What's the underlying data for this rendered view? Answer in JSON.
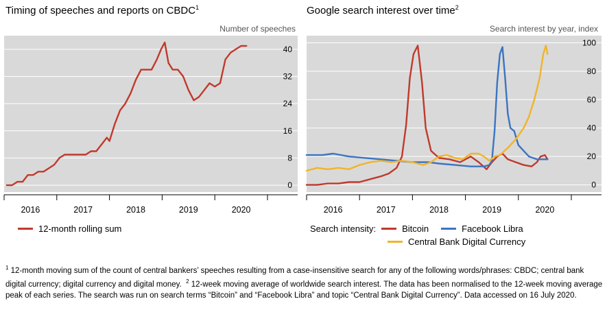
{
  "chart_data": [
    {
      "type": "line",
      "title": "Timing of speeches and reports on CBDC",
      "title_note": "1",
      "unit_label": "Number of speeches",
      "y_ticks": [
        0,
        8,
        16,
        24,
        32,
        40
      ],
      "ylim": [
        -2,
        44
      ],
      "x_labels": [
        "2016",
        "2017",
        "2018",
        "2019",
        "2020"
      ],
      "xlim": [
        2015.5,
        2020.5
      ],
      "grid": true,
      "background": "#d9d9d9",
      "series": [
        {
          "name": "12-month rolling sum",
          "color": "#c0392b",
          "x": [
            2015.55,
            2015.65,
            2015.75,
            2015.85,
            2015.95,
            2016.05,
            2016.15,
            2016.25,
            2016.35,
            2016.45,
            2016.55,
            2016.65,
            2016.75,
            2016.85,
            2016.95,
            2017.05,
            2017.15,
            2017.25,
            2017.35,
            2017.45,
            2017.5,
            2017.6,
            2017.7,
            2017.8,
            2017.9,
            2018.0,
            2018.1,
            2018.2,
            2018.3,
            2018.4,
            2018.48,
            2018.55,
            2018.62,
            2018.7,
            2018.8,
            2018.9,
            2019.0,
            2019.1,
            2019.2,
            2019.3,
            2019.4,
            2019.5,
            2019.6,
            2019.7,
            2019.8,
            2019.9,
            2020.0,
            2020.1
          ],
          "values": [
            0,
            0,
            1,
            1,
            3,
            3,
            4,
            4,
            5,
            6,
            8,
            9,
            9,
            9,
            9,
            9,
            10,
            10,
            12,
            14,
            13,
            18,
            22,
            24,
            27,
            31,
            34,
            34,
            34,
            37,
            40,
            42,
            36,
            34,
            34,
            32,
            28,
            25,
            26,
            28,
            30,
            29,
            30,
            37,
            39,
            40,
            41,
            41
          ]
        }
      ]
    },
    {
      "type": "line",
      "title": "Google search interest over time",
      "title_note": "2",
      "unit_label": "Search interest by year, index",
      "y_ticks": [
        0,
        20,
        40,
        60,
        80,
        100
      ],
      "ylim": [
        -5,
        105
      ],
      "x_labels": [
        "2016",
        "2017",
        "2018",
        "2019",
        "2020"
      ],
      "xlim": [
        2015.5,
        2020.5
      ],
      "grid": true,
      "background": "#d9d9d9",
      "legend_label": "Search intensity:",
      "series": [
        {
          "name": "Bitcoin",
          "color": "#c0392b",
          "x": [
            2015.5,
            2015.7,
            2015.9,
            2016.1,
            2016.3,
            2016.5,
            2016.7,
            2016.9,
            2017.05,
            2017.2,
            2017.3,
            2017.38,
            2017.45,
            2017.52,
            2017.6,
            2017.68,
            2017.75,
            2017.85,
            2018.0,
            2018.2,
            2018.4,
            2018.6,
            2018.75,
            2018.9,
            2019.0,
            2019.1,
            2019.2,
            2019.3,
            2019.45,
            2019.6,
            2019.75,
            2019.85,
            2019.92,
            2020.0,
            2020.05
          ],
          "values": [
            0,
            0,
            1,
            1,
            2,
            2,
            4,
            6,
            8,
            12,
            20,
            42,
            75,
            92,
            98,
            72,
            40,
            24,
            19,
            18,
            16,
            20,
            16,
            11,
            16,
            20,
            22,
            18,
            16,
            14,
            13,
            16,
            20,
            21,
            18
          ]
        },
        {
          "name": "Facebook Libra",
          "color": "#3a74c2",
          "x": [
            2015.5,
            2015.8,
            2016.0,
            2016.3,
            2016.6,
            2016.9,
            2017.2,
            2017.5,
            2017.8,
            2018.0,
            2018.3,
            2018.6,
            2018.85,
            2018.95,
            2019.0,
            2019.05,
            2019.1,
            2019.15,
            2019.2,
            2019.25,
            2019.3,
            2019.35,
            2019.42,
            2019.5,
            2019.6,
            2019.7,
            2019.85,
            2020.05
          ],
          "values": [
            21,
            21,
            22,
            20,
            19,
            18,
            17,
            16,
            16,
            15,
            14,
            13,
            13,
            14,
            17,
            38,
            72,
            92,
            97,
            75,
            50,
            40,
            38,
            28,
            24,
            20,
            18,
            18
          ]
        },
        {
          "name": "Central Bank Digital Currency",
          "color": "#f0b429",
          "x": [
            2015.5,
            2015.7,
            2015.9,
            2016.1,
            2016.3,
            2016.5,
            2016.7,
            2016.9,
            2017.1,
            2017.3,
            2017.5,
            2017.7,
            2017.85,
            2018.0,
            2018.15,
            2018.3,
            2018.45,
            2018.6,
            2018.75,
            2018.85,
            2018.95,
            2019.05,
            2019.15,
            2019.3,
            2019.45,
            2019.6,
            2019.7,
            2019.8,
            2019.9,
            2019.97,
            2020.02,
            2020.05
          ],
          "values": [
            10,
            12,
            11,
            12,
            11,
            14,
            16,
            17,
            16,
            17,
            16,
            14,
            16,
            20,
            21,
            19,
            18,
            22,
            22,
            20,
            17,
            20,
            21,
            26,
            32,
            40,
            48,
            60,
            75,
            92,
            98,
            92
          ]
        }
      ]
    }
  ],
  "footnotes": {
    "note1_mark": "1",
    "note1_text": " 12-month moving sum of the count of central bankers’ speeches resulting from a case-insensitive search for any of the following words/phrases: CBDC; central bank digital currency; digital currency and digital money.",
    "note2_mark": "2",
    "note2_text": " 12-week moving average of worldwide search interest. The data has been normalised to the 12-week moving average peak of each series. The search was run on search terms “Bitcoin” and “Facebook Libra” and topic “Central Bank Digital Currency”. Data accessed on 16 July 2020."
  }
}
